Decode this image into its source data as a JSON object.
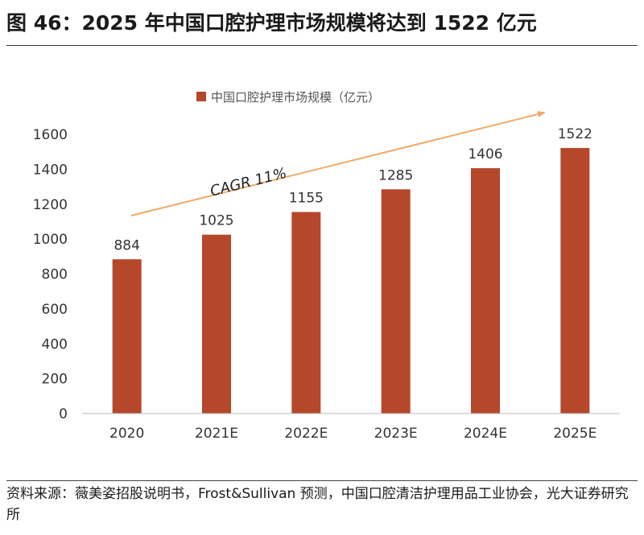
{
  "figure": {
    "title": "图 46：2025 年中国口腔护理市场规模将达到 1522 亿元"
  },
  "chart_data": {
    "type": "bar",
    "categories": [
      "2020",
      "2021E",
      "2022E",
      "2023E",
      "2024E",
      "2025E"
    ],
    "series": [
      {
        "name": "中国口腔护理市场规模（亿元）",
        "values": [
          884,
          1025,
          1155,
          1285,
          1406,
          1522
        ]
      }
    ],
    "data_labels": [
      "884",
      "1025",
      "1155",
      "1285",
      "1406",
      "1522"
    ],
    "yticks": [
      "0",
      "200",
      "400",
      "600",
      "800",
      "1000",
      "1200",
      "1400",
      "1600"
    ],
    "ylim": [
      0,
      1600
    ],
    "annotation": "CAGR  11%",
    "legend_position": "top-center",
    "bar_color": "#b5472a",
    "arrow_color": "#f0a96a"
  },
  "source": {
    "label": "资料来源：",
    "text": "薇美姿招股说明书，Frost&Sullivan 预测，中国口腔清洁护理用品工业协会，光大证券研究所"
  }
}
